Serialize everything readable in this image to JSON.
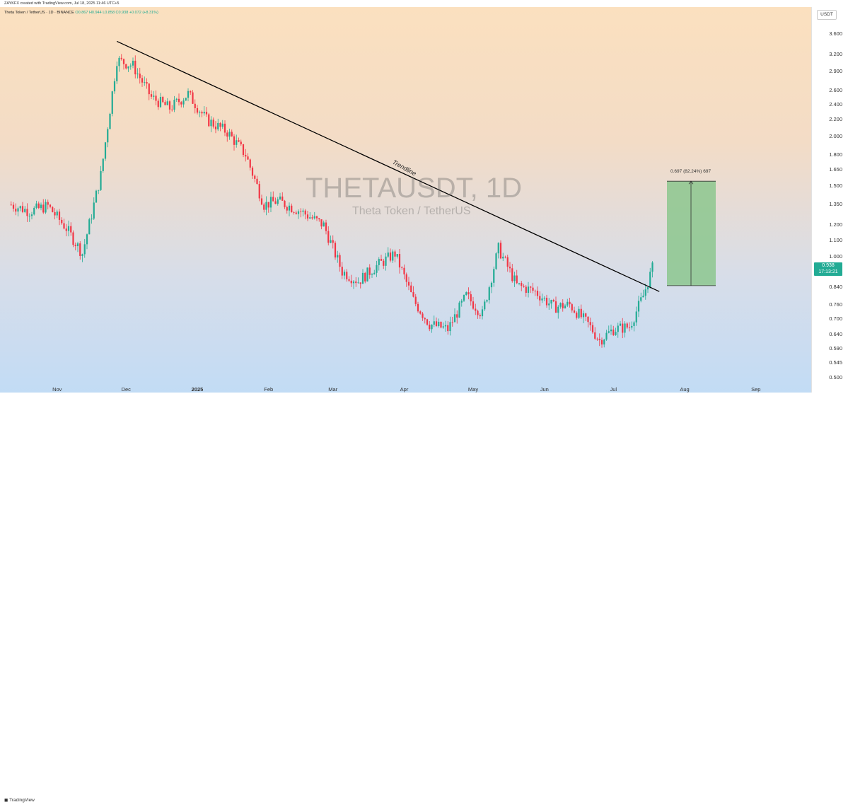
{
  "header": {
    "attribution": "ZAYKFX created with TradingView.com, Jul 18, 2025 11:46 UTC+5",
    "symbol": "Theta Token / TetherUS · 1D · BINANCE",
    "ohlc": "O0.867 H0.944 L0.858 C0.938 +0.072 (+8.31%)"
  },
  "watermark": {
    "ticker": "THETAUSDT, 1D",
    "name": "Theta Token / TetherUS"
  },
  "currency": "USDT",
  "last_price": {
    "value": "0.938",
    "countdown": "17:13:21"
  },
  "annotations": {
    "trendline_label": "Trendline",
    "measure_label": "0.697 (82.24%) 697"
  },
  "footer": {
    "brand": "TradingView"
  },
  "colors": {
    "up": "#22ab94",
    "down": "#f23645",
    "measure_fill": "#8cc78e",
    "trendline": "#000000"
  },
  "chart_data": {
    "type": "candlestick",
    "scale": "log",
    "y_ticks": [
      "3.600",
      "3.200",
      "2.900",
      "2.600",
      "2.400",
      "2.200",
      "2.000",
      "1.800",
      "1.650",
      "1.500",
      "1.350",
      "1.200",
      "1.100",
      "1.000",
      "0.840",
      "0.760",
      "0.700",
      "0.640",
      "0.590",
      "0.545",
      "0.500"
    ],
    "x_ticks": [
      "Nov",
      "Dec",
      "2025",
      "Feb",
      "Mar",
      "Apr",
      "May",
      "Jun",
      "Jul",
      "Aug",
      "Sep"
    ],
    "ylim": [
      0.48,
      4.2
    ],
    "trendline": {
      "start": {
        "date": "Nov 27 2024",
        "value": 3.45
      },
      "end": {
        "date": "Jul 21 2025",
        "value": 0.82
      },
      "label": "Trendline"
    },
    "measure": {
      "from": 0.848,
      "to": 1.545,
      "change": 0.697,
      "change_pct": 82.24
    },
    "series": [
      {
        "name": "price path",
        "x": [
          "Oct 12",
          "Oct 20",
          "Oct 28",
          "Nov 5",
          "Nov 12",
          "Nov 20",
          "Nov 27",
          "Dec 4",
          "Dec 12",
          "Dec 20",
          "Dec 28",
          "Jan 5",
          "Jan 14",
          "Jan 22",
          "Jan 30",
          "Feb 5",
          "Feb 15",
          "Feb 25",
          "Mar 5",
          "Mar 12",
          "Mar 20",
          "Mar 28",
          "Apr 5",
          "Apr 12",
          "Apr 20",
          "Apr 28",
          "May 5",
          "May 12",
          "May 20",
          "May 28",
          "Jun 5",
          "Jun 12",
          "Jun 20",
          "Jun 25",
          "Jul 1",
          "Jul 8",
          "Jul 14",
          "Jul 18"
        ],
        "values": [
          1.35,
          1.3,
          1.34,
          1.18,
          1.02,
          1.6,
          3.1,
          3.0,
          2.5,
          2.35,
          2.55,
          2.2,
          2.05,
          1.8,
          1.35,
          1.38,
          1.3,
          1.2,
          0.92,
          0.87,
          0.95,
          1.02,
          0.78,
          0.68,
          0.66,
          0.8,
          0.72,
          1.05,
          0.85,
          0.82,
          0.75,
          0.76,
          0.68,
          0.62,
          0.66,
          0.67,
          0.8,
          0.938
        ]
      }
    ]
  }
}
